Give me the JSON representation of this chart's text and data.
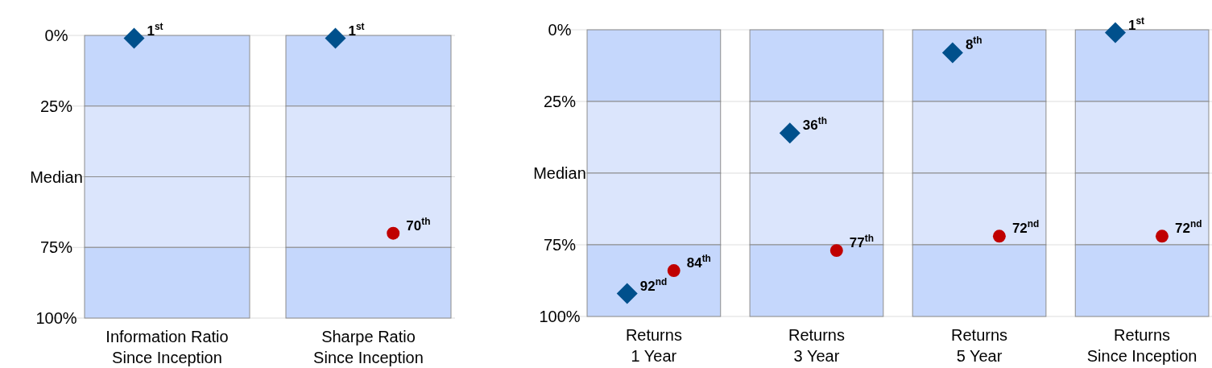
{
  "chart_data": [
    {
      "type": "bar",
      "stacked": true,
      "categories": [
        "Information Ratio\nSince Inception",
        "Sharpe Ratio\nSince Inception"
      ],
      "ylim": [
        100,
        0
      ],
      "yticks": [
        {
          "value": 0,
          "label": "0%"
        },
        {
          "value": 25,
          "label": "25%"
        },
        {
          "value": 50,
          "label": "Median"
        },
        {
          "value": 75,
          "label": "75%"
        },
        {
          "value": 100,
          "label": "100%"
        }
      ],
      "grid": "y",
      "series": [
        {
          "color": "#c5d7fc",
          "values": [
            25,
            25
          ]
        },
        {
          "color": "#dbe5fc",
          "values": [
            25,
            25
          ]
        },
        {
          "color": "#dbe5fc",
          "values": [
            25,
            25
          ]
        },
        {
          "color": "#c5d7fc",
          "values": [
            25,
            25
          ]
        },
        {
          "type": "scatter",
          "marker": "diamond",
          "color": "#00508c",
          "x": [
            "Information Ratio\nSince Inception",
            "Sharpe Ratio\nSince Inception"
          ],
          "values": [
            1,
            1
          ],
          "value_labels": [
            "1$^{st}$",
            "1$^{st}$"
          ]
        },
        {
          "type": "scatter",
          "marker": "circle",
          "color": "#c00000",
          "x": [
            "Information Ratio\nSince Inception",
            "Sharpe Ratio\nSince Inception"
          ],
          "values": [
            null,
            70
          ],
          "value_labels": [
            null,
            "70$^{th}$"
          ]
        }
      ]
    },
    {
      "type": "bar",
      "stacked": true,
      "categories": [
        "Returns\n1 Year",
        "Returns\n3 Year",
        "Returns\n5 Year",
        "Returns\nSince Inception"
      ],
      "ylim": [
        100,
        0
      ],
      "yticks": [
        {
          "value": 0,
          "label": "0%"
        },
        {
          "value": 25,
          "label": "25%"
        },
        {
          "value": 50,
          "label": "Median"
        },
        {
          "value": 75,
          "label": "75%"
        },
        {
          "value": 100,
          "label": "100%"
        }
      ],
      "grid": "y",
      "series": [
        {
          "color": "#c5d7fc",
          "values": [
            25,
            25,
            25,
            25
          ]
        },
        {
          "color": "#dbe5fc",
          "values": [
            25,
            25,
            25,
            25
          ]
        },
        {
          "color": "#dbe5fc",
          "values": [
            25,
            25,
            25,
            25
          ]
        },
        {
          "color": "#c5d7fc",
          "values": [
            25,
            25,
            25,
            25
          ]
        },
        {
          "type": "scatter",
          "marker": "diamond",
          "color": "#00508c",
          "x": [
            "Returns\n1 Year",
            "Returns\n3 Year",
            "Returns\n5 Year",
            "Returns\nSince Inception"
          ],
          "values": [
            92,
            36,
            8,
            1
          ],
          "value_labels": [
            "92$^{nd}$",
            "36$^{th}$",
            "8$^{th}$",
            "1$^{st}$"
          ]
        },
        {
          "type": "scatter",
          "marker": "circle",
          "color": "#c00000",
          "x": [
            "Returns\n1 Year",
            "Returns\n3 Year",
            "Returns\n5 Year",
            "Returns\nSince Inception"
          ],
          "values": [
            84,
            77,
            72,
            72
          ],
          "value_labels": [
            "84$^{th}$",
            "77$^{th}$",
            "72$^{nd}$",
            "72$^{nd}$"
          ]
        }
      ]
    }
  ]
}
